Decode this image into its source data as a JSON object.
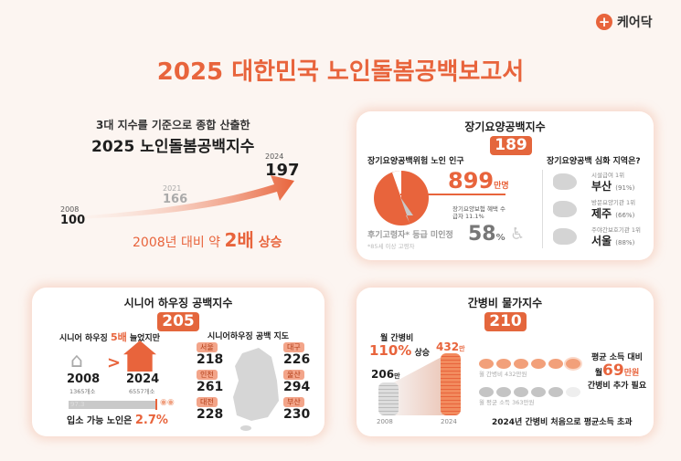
{
  "logo": {
    "text": "케어닥",
    "icon": "plus-circle-icon"
  },
  "title": "2025 대한민국 노인돌봄공백보고서",
  "overview": {
    "subtitle": "3대 지수를 기준으로 종합 산출한",
    "heading": "2025 노인돌봄공백지수",
    "points": [
      {
        "year": "2008",
        "value": "100"
      },
      {
        "year": "2021",
        "value": "166"
      },
      {
        "year": "2024",
        "value": "197"
      }
    ],
    "summary_pre": "2008년 대비 약 ",
    "summary_em": "2배",
    "summary_post": " 상승"
  },
  "ltc": {
    "title": "장기요양공백지수",
    "index": "189",
    "left_heading": "장기요양공백위험 노인 인구",
    "population": "899",
    "population_unit": "만명",
    "insured_label": "장기요양보험 혜택 수급자",
    "insured_pct": "11.1%",
    "unrated_label": "후기고령자* 등급 미인정",
    "unrated_note": "*85세 이상 고령자",
    "unrated_pct": "58",
    "unrated_pct_unit": "%",
    "pie_fraction": 0.889,
    "right_heading": "장기요양공백 심화 지역은?",
    "regions": [
      {
        "caption": "시설급여 1위",
        "name": "부산",
        "pct": "(91%)"
      },
      {
        "caption": "방문요양기관 1위",
        "name": "제주",
        "pct": "(66%)"
      },
      {
        "caption": "주야간보호기관 1위",
        "name": "서울",
        "pct": "(88%)"
      }
    ]
  },
  "housing": {
    "title": "시니어 하우징 공백지수",
    "index": "205",
    "left_heading_pre": "시니어 하우징 ",
    "left_heading_em": "5배",
    "left_heading_post": " 늘었지만",
    "y2008": "2008",
    "c2008": "1365개소",
    "y2024": "2024",
    "c2024": "6557개소",
    "bar_unavailable": "97.3",
    "bar_available_fraction": 0.027,
    "available_pre": "입소 가능 노인은 ",
    "available_pct": "2.7%",
    "map_heading": "시니어하우징 공백 지도",
    "cities": [
      {
        "name": "서울",
        "value": "218"
      },
      {
        "name": "인천",
        "value": "261"
      },
      {
        "name": "대전",
        "value": "228"
      },
      {
        "name": "대구",
        "value": "226"
      },
      {
        "name": "울산",
        "value": "294"
      },
      {
        "name": "부산",
        "value": "230"
      }
    ]
  },
  "caregiver": {
    "title": "간병비 물가지수",
    "index": "210",
    "monthly_label": "월 간병비",
    "rise_pct": "110%",
    "rise_word": " 상승",
    "v2008": "206",
    "v2024": "432",
    "unit": "만",
    "year2008": "2008",
    "year2024": "2024",
    "cost_caption": "월 간병비 432만원",
    "income_caption": "월 평균 소득 363만원",
    "gap_line1": "평균 소득 대비",
    "gap_pre": "월",
    "gap_value": "69",
    "gap_unit": "만원",
    "gap_line3": "간병비 추가 필요",
    "footer": "2024년 간병비 처음으로 평균소득 초과"
  },
  "colors": {
    "accent": "#e8643c",
    "card": "#ffffff",
    "background": "#fcf5f1"
  }
}
